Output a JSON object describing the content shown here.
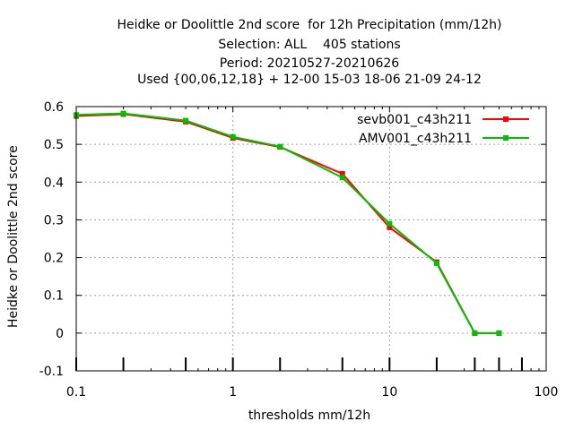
{
  "chart_data": {
    "type": "line",
    "title_lines": [
      "Heidke or Doolittle 2nd score  for 12h Precipitation (mm/12h)",
      "Selection: ALL    405 stations",
      "Period: 20210527-20210626",
      "Used {00,06,12,18} + 12-00 15-03 18-06 21-09 24-12"
    ],
    "xlabel": "thresholds mm/12h",
    "ylabel": "Heidke or Doolittle 2nd score",
    "xscale": "log",
    "xlim": [
      0.1,
      100
    ],
    "ylim": [
      -0.1,
      0.6
    ],
    "xticks": [
      0.1,
      1,
      10,
      100
    ],
    "xtick_labels": [
      "0.1",
      "1",
      "10",
      "100"
    ],
    "yticks": [
      -0.1,
      0,
      0.1,
      0.2,
      0.3,
      0.4,
      0.5,
      0.6
    ],
    "ytick_labels": [
      "-0.1",
      "0",
      "0.1",
      "0.2",
      "0.3",
      "0.4",
      "0.5",
      "0.6"
    ],
    "grid": true,
    "legend_position": "top-right",
    "rug_x": [
      0.1,
      0.2,
      0.5,
      1,
      2,
      5,
      10,
      20,
      35,
      50,
      70
    ],
    "series": [
      {
        "name": "sevb001_c43h211",
        "color": "#ff0000",
        "marker": "square",
        "x": [
          0.1,
          0.2,
          0.5,
          1,
          2,
          5,
          10,
          20,
          35,
          50
        ],
        "y": [
          0.575,
          0.58,
          0.56,
          0.517,
          0.493,
          0.422,
          0.28,
          0.188,
          0.0,
          0.0
        ]
      },
      {
        "name": "AMV001_c43h211",
        "color": "#00c000",
        "marker": "square",
        "x": [
          0.1,
          0.2,
          0.5,
          1,
          2,
          5,
          10,
          20,
          35,
          50
        ],
        "y": [
          0.578,
          0.582,
          0.563,
          0.52,
          0.494,
          0.412,
          0.29,
          0.185,
          0.0,
          0.0
        ]
      }
    ]
  }
}
